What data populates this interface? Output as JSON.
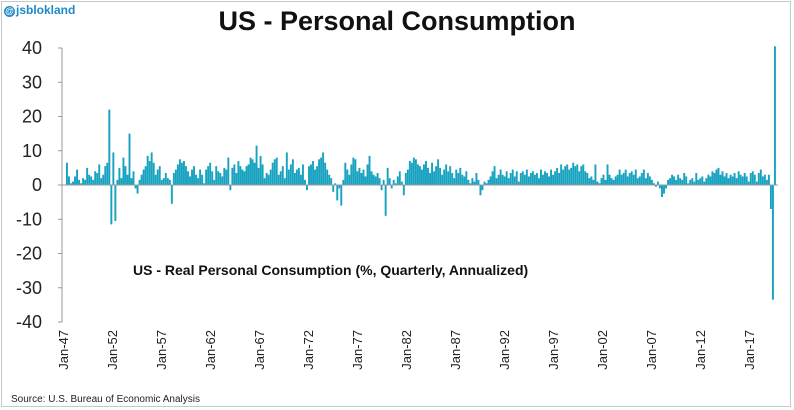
{
  "handle": "jsblokland",
  "title": "US - Personal Consumption",
  "source": "Source: U.S. Bureau of Economic Analysis",
  "colors": {
    "bar": "#17a2c0",
    "highlight": "#7a1f5c",
    "axis": "#999999"
  },
  "chart_data": {
    "type": "bar",
    "title": "US - Personal Consumption",
    "annotation": "US - Real Personal Consumption (%, Quarterly, Annualized)",
    "ylim": [
      -40,
      40
    ],
    "yticks": [
      40,
      30,
      20,
      10,
      0,
      -10,
      -20,
      -30,
      -40
    ],
    "xtick_labels": [
      "Jan-47",
      "Jan-52",
      "Jan-57",
      "Jan-62",
      "Jan-67",
      "Jan-72",
      "Jan-77",
      "Jan-82",
      "Jan-87",
      "Jan-92",
      "Jan-97",
      "Jan-02",
      "Jan-07",
      "Jan-12",
      "Jan-17"
    ],
    "x_start": "1947-Q2",
    "x_end": "2020-Q3",
    "grid": false,
    "series": [
      {
        "values": [
          6.5,
          2.5,
          0.5,
          1.0,
          2.5,
          4.5,
          1.5,
          0.5,
          2.0,
          1.5,
          5.0,
          3.0,
          2.5,
          1.5,
          4.0,
          3.5,
          6.0,
          2.0,
          3.0,
          5.5,
          6.5,
          22.0,
          -11.5,
          9.5,
          -10.5,
          1.5,
          5.0,
          2.0,
          8.0,
          5.5,
          3.0,
          15.0,
          2.0,
          4.0,
          -1.0,
          -2.5,
          1.5,
          3.0,
          4.5,
          5.5,
          8.5,
          7.0,
          9.5,
          6.5,
          3.0,
          4.5,
          5.5,
          1.5,
          2.0,
          3.5,
          2.0,
          1.5,
          -5.5,
          3.5,
          4.5,
          6.0,
          7.5,
          6.5,
          7.0,
          5.5,
          4.0,
          2.5,
          4.5,
          5.5,
          3.0,
          2.0,
          4.5,
          3.0,
          0.5,
          4.5,
          5.5,
          6.5,
          4.0,
          1.5,
          5.5,
          4.0,
          3.5,
          2.5,
          5.0,
          4.5,
          8.0,
          -1.5,
          5.0,
          6.0,
          3.5,
          7.0,
          5.5,
          4.5,
          4.0,
          5.5,
          6.0,
          8.0,
          7.5,
          6.5,
          11.5,
          5.0,
          8.5,
          6.0,
          2.0,
          3.5,
          3.0,
          4.5,
          6.5,
          7.5,
          8.0,
          3.0,
          4.0,
          5.5,
          2.0,
          9.5,
          4.5,
          6.0,
          7.5,
          3.5,
          4.5,
          5.0,
          3.0,
          6.0,
          1.5,
          -1.5,
          5.5,
          6.0,
          7.0,
          4.5,
          5.5,
          7.5,
          8.0,
          9.5,
          6.5,
          4.5,
          3.0,
          2.0,
          -2.0,
          0.5,
          -4.5,
          -1.0,
          -6.0,
          1.5,
          6.5,
          4.5,
          3.0,
          6.0,
          8.0,
          7.5,
          4.0,
          5.0,
          3.5,
          4.5,
          2.5,
          6.0,
          8.5,
          4.0,
          3.0,
          2.5,
          3.5,
          2.0,
          -1.5,
          1.5,
          -9.0,
          5.0,
          2.0,
          -1.0,
          1.5,
          0.5,
          2.5,
          4.0,
          1.0,
          -3.0,
          3.5,
          4.5,
          7.0,
          6.5,
          8.0,
          7.5,
          6.0,
          5.5,
          4.5,
          6.0,
          7.0,
          5.0,
          3.5,
          6.5,
          4.0,
          5.5,
          7.5,
          5.0,
          3.0,
          4.5,
          6.0,
          4.0,
          5.5,
          3.5,
          2.0,
          4.5,
          3.5,
          5.0,
          3.0,
          2.5,
          4.0,
          1.5,
          0.5,
          2.0,
          1.0,
          3.5,
          1.5,
          -3.0,
          -1.5,
          1.0,
          0.5,
          1.5,
          2.5,
          4.0,
          5.5,
          2.0,
          3.0,
          4.5,
          3.0,
          2.5,
          4.0,
          2.0,
          3.5,
          4.5,
          2.5,
          4.0,
          1.0,
          3.5,
          4.0,
          3.0,
          4.5,
          2.5,
          3.5,
          4.0,
          3.0,
          3.5,
          2.0,
          4.5,
          3.0,
          4.0,
          3.5,
          2.5,
          4.5,
          3.0,
          4.0,
          5.0,
          3.5,
          6.0,
          4.5,
          5.5,
          6.0,
          4.5,
          5.0,
          6.5,
          5.5,
          6.0,
          4.0,
          5.5,
          6.0,
          4.0,
          3.5,
          2.0,
          2.5,
          1.5,
          6.0,
          1.0,
          0.5,
          2.0,
          3.0,
          1.5,
          6.0,
          3.0,
          2.0,
          1.5,
          2.5,
          3.0,
          4.5,
          3.0,
          3.5,
          4.5,
          2.5,
          3.5,
          4.0,
          3.0,
          4.5,
          2.0,
          2.5,
          3.5,
          4.5,
          2.0,
          3.5,
          2.5,
          1.5,
          0.5,
          -0.5,
          1.0,
          -1.0,
          -3.5,
          -2.5,
          -1.0,
          1.5,
          2.0,
          3.0,
          2.5,
          1.5,
          3.0,
          2.0,
          1.5,
          3.5,
          2.5,
          0.5,
          1.5,
          2.0,
          1.0,
          3.5,
          1.5,
          2.0,
          2.5,
          1.0,
          2.0,
          3.0,
          2.5,
          4.0,
          3.5,
          4.5,
          5.0,
          3.0,
          4.0,
          2.5,
          3.5,
          2.0,
          3.0,
          2.5,
          3.5,
          2.0,
          4.0,
          3.0,
          2.5,
          3.5,
          2.5,
          1.0,
          3.5,
          4.0,
          3.0,
          1.0,
          3.5,
          4.5,
          2.5,
          3.0,
          1.5,
          3.0,
          -7.0,
          -33.5,
          40.5
        ]
      }
    ]
  }
}
